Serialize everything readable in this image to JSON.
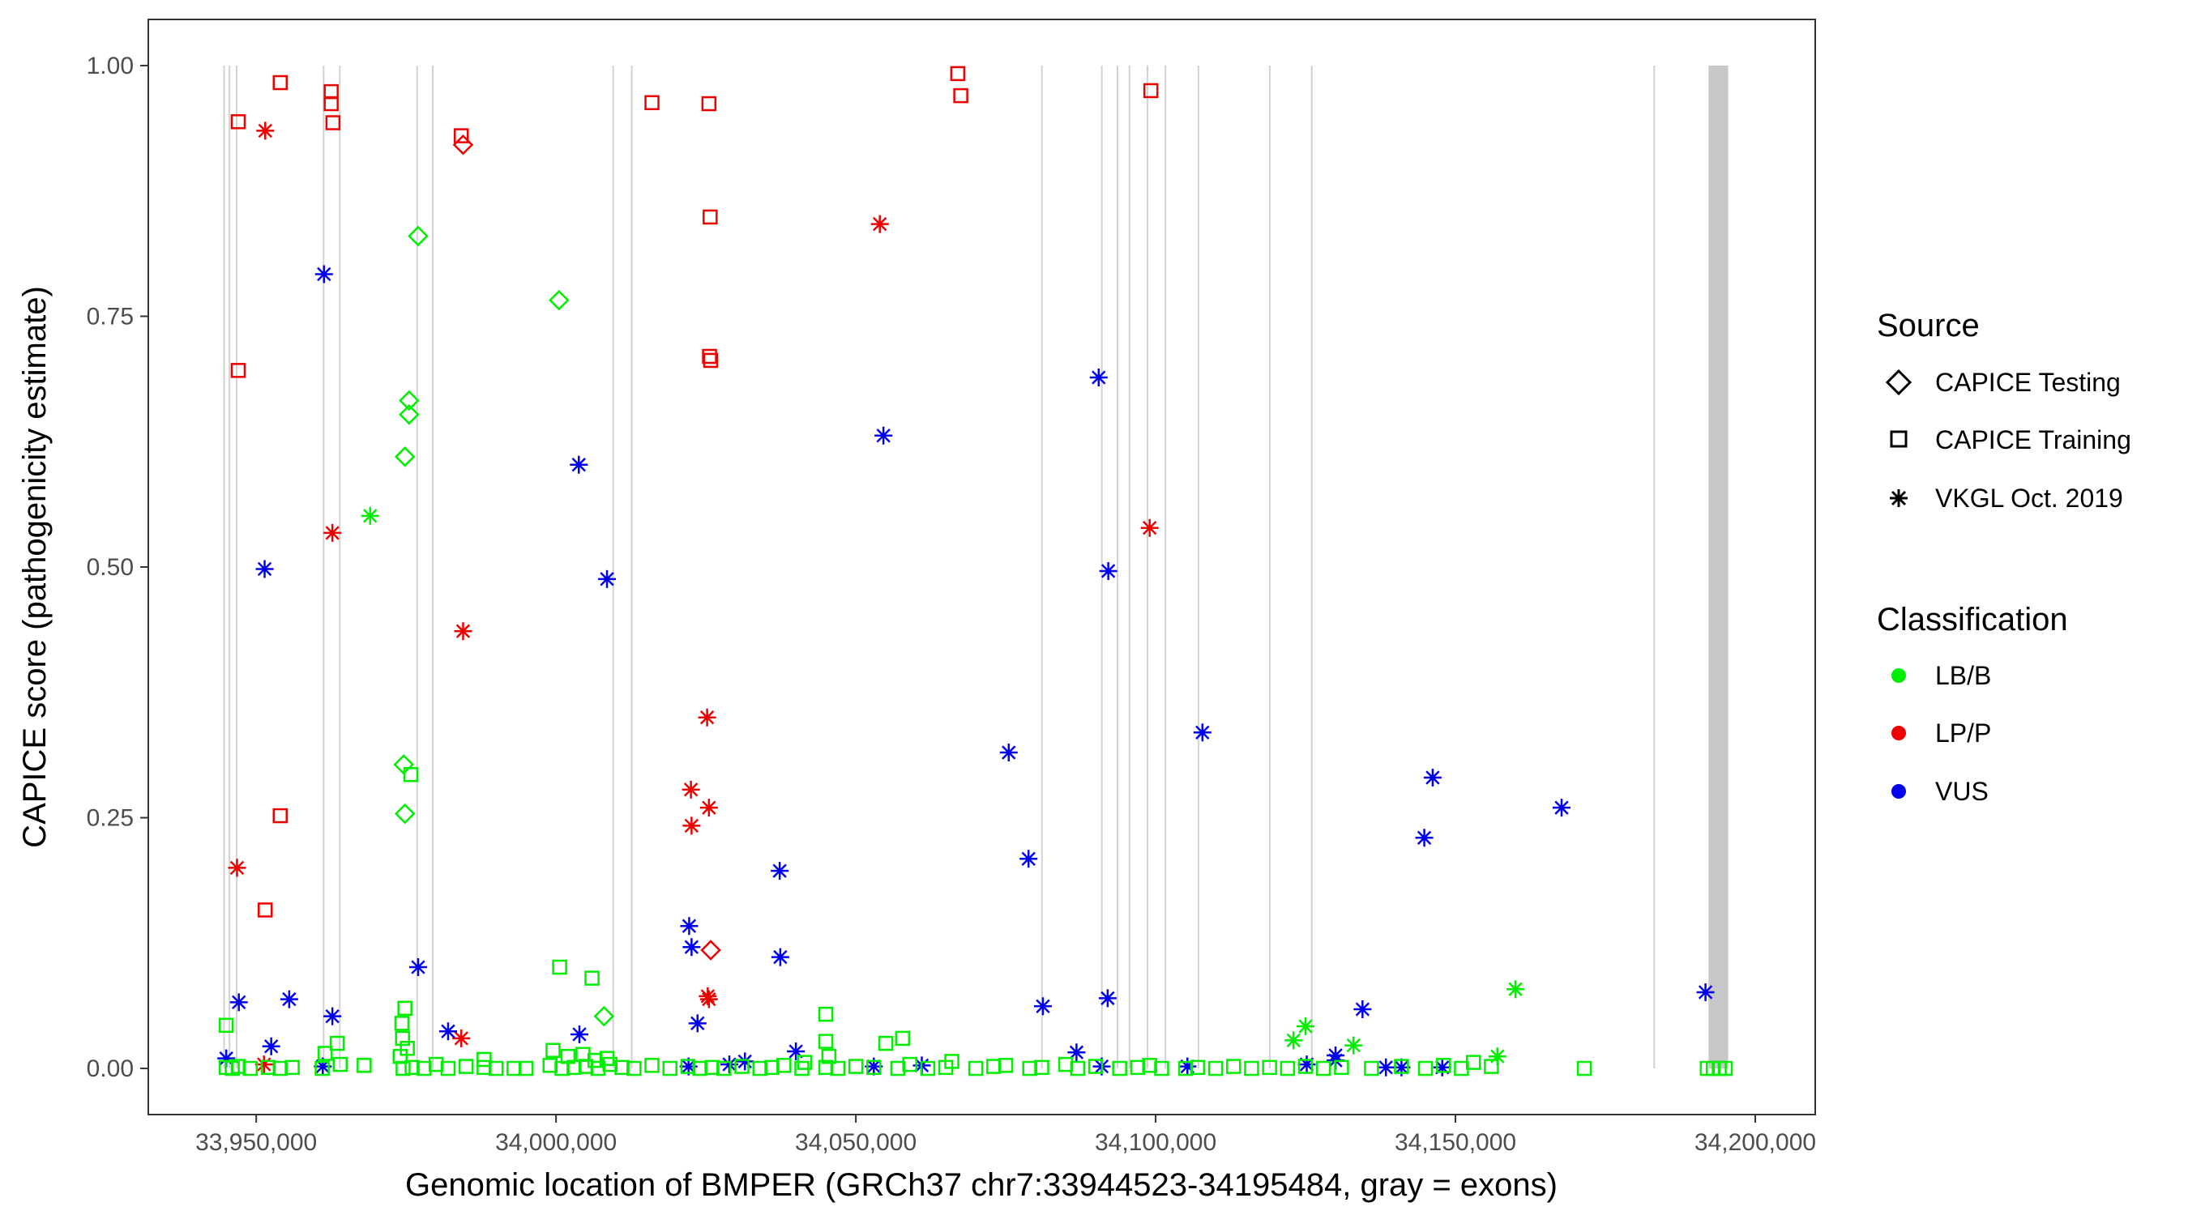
{
  "chart_data": {
    "type": "scatter",
    "title": "",
    "xlabel": "Genomic location of BMPER (GRCh37 chr7:33944523-34195484, gray = exons)",
    "ylabel": "CAPICE score (pathogenicity estimate)",
    "xlim": [
      33932000,
      34210000
    ],
    "ylim": [
      -0.046,
      1.046
    ],
    "x_ticks": [
      33950000,
      34000000,
      34050000,
      34100000,
      34150000,
      34200000
    ],
    "x_tick_labels": [
      "33,950,000",
      "34,000,000",
      "34,050,000",
      "34,100,000",
      "34,150,000",
      "34,200,000"
    ],
    "y_ticks": [
      0.0,
      0.25,
      0.5,
      0.75,
      1.0
    ],
    "y_tick_labels": [
      "0.00",
      "0.25",
      "0.50",
      "0.75",
      "1.00"
    ],
    "grid": false,
    "exons": [
      {
        "start": 33944500,
        "end": 33944700
      },
      {
        "start": 33945400,
        "end": 33945600
      },
      {
        "start": 33946600,
        "end": 33946800
      },
      {
        "start": 33961100,
        "end": 33961300
      },
      {
        "start": 33963800,
        "end": 33964000
      },
      {
        "start": 33976700,
        "end": 33976900
      },
      {
        "start": 33979300,
        "end": 33979500
      },
      {
        "start": 34009400,
        "end": 34009600
      },
      {
        "start": 34012500,
        "end": 34012700
      },
      {
        "start": 34080900,
        "end": 34081100
      },
      {
        "start": 34090900,
        "end": 34091100
      },
      {
        "start": 34093500,
        "end": 34093700
      },
      {
        "start": 34095500,
        "end": 34095700
      },
      {
        "start": 34098500,
        "end": 34098700
      },
      {
        "start": 34101500,
        "end": 34101700
      },
      {
        "start": 34107000,
        "end": 34107200
      },
      {
        "start": 34118900,
        "end": 34119100
      },
      {
        "start": 34125900,
        "end": 34126100
      },
      {
        "start": 34183000,
        "end": 34183200
      },
      {
        "start": 34192200,
        "end": 34195484
      }
    ],
    "legend": {
      "source_title": "Source",
      "source_items": [
        {
          "label": "CAPICE Testing",
          "shape": "diamond"
        },
        {
          "label": "CAPICE Training",
          "shape": "square"
        },
        {
          "label": "VKGL Oct. 2019",
          "shape": "asterisk"
        }
      ],
      "class_title": "Classification",
      "class_items": [
        {
          "label": "LB/B",
          "color": "#00ee00"
        },
        {
          "label": "LP/P",
          "color": "#ee0000"
        },
        {
          "label": "VUS",
          "color": "#0000ee"
        }
      ]
    },
    "series": [
      {
        "name": "CAPICE Training LP/P",
        "shape": "square",
        "color": "#ee0000",
        "x": [
          33947000,
          33954000,
          33962500,
          33962500,
          33962800,
          33984200,
          34016000,
          34025500,
          34025700,
          34025600,
          34025800,
          34067000,
          34067500,
          34099200,
          33947000,
          33954000,
          33951500
        ],
        "y": [
          0.944,
          0.983,
          0.974,
          0.962,
          0.943,
          0.93,
          0.963,
          0.962,
          0.849,
          0.71,
          0.706,
          0.992,
          0.97,
          0.975,
          0.696,
          0.252,
          0.158
        ]
      },
      {
        "name": "CAPICE Testing LP/P",
        "shape": "diamond",
        "color": "#ee0000",
        "x": [
          33984500,
          34025800
        ],
        "y": [
          0.921,
          0.118
        ]
      },
      {
        "name": "VKGL LP/P",
        "shape": "asterisk",
        "color": "#ee0000",
        "x": [
          33951500,
          34054000,
          33962700,
          33984500,
          34099000,
          34025200,
          34022500,
          34025500,
          34022600,
          34025300,
          34025500,
          33946800,
          33984200,
          33951300
        ],
        "y": [
          0.935,
          0.842,
          0.534,
          0.436,
          0.539,
          0.35,
          0.278,
          0.26,
          0.242,
          0.072,
          0.069,
          0.2,
          0.03,
          0.004
        ]
      },
      {
        "name": "VKGL VUS",
        "shape": "asterisk",
        "color": "#0000ee",
        "x": [
          33961300,
          34003800,
          34008500,
          34054600,
          34090500,
          34092100,
          33951400,
          34107800,
          34075500,
          34078800,
          34037300,
          34146200,
          34167700,
          34144800,
          34022200,
          34022600,
          34037400,
          34023600,
          33977000,
          34191700,
          33947100,
          33955500,
          33962700,
          34081200,
          34092000,
          34134500,
          34003900,
          33982000,
          33952500,
          34040000,
          34086800,
          34130000,
          34130000,
          33945000,
          34031500,
          34028900,
          34022100,
          34061000,
          33961100,
          34053000,
          34091000,
          34105300,
          34125200,
          34138400,
          34141000,
          34147800
        ],
        "y": [
          0.792,
          0.602,
          0.488,
          0.631,
          0.689,
          0.496,
          0.498,
          0.335,
          0.315,
          0.209,
          0.197,
          0.29,
          0.26,
          0.23,
          0.142,
          0.121,
          0.111,
          0.045,
          0.101,
          0.076,
          0.066,
          0.069,
          0.052,
          0.062,
          0.07,
          0.059,
          0.034,
          0.037,
          0.022,
          0.017,
          0.016,
          0.013,
          0.008,
          0.01,
          0.007,
          0.004,
          0.002,
          0.003,
          0.002,
          0.002,
          0.002,
          0.002,
          0.004,
          0.001,
          0.001,
          0.001
        ]
      },
      {
        "name": "VKGL LB/B",
        "shape": "asterisk",
        "color": "#00ee00",
        "x": [
          33969000,
          34160000,
          34125000,
          34133000,
          34123000,
          34157000
        ],
        "y": [
          0.551,
          0.079,
          0.042,
          0.023,
          0.028,
          0.012
        ]
      },
      {
        "name": "CAPICE Testing LB/B",
        "shape": "diamond",
        "color": "#00ee00",
        "x": [
          33977000,
          34000500,
          33975500,
          33975500,
          33974800,
          33974600,
          33974800,
          34008000
        ],
        "y": [
          0.83,
          0.766,
          0.666,
          0.652,
          0.61,
          0.303,
          0.254,
          0.052
        ]
      },
      {
        "name": "CAPICE Training LB/B",
        "shape": "square",
        "color": "#00ee00",
        "x": [
          33975800,
          34000600,
          34006000,
          33945000,
          34045000,
          34057800,
          33974800,
          34055000,
          33963500,
          34045000,
          33961500,
          33975200,
          33974400,
          33974300,
          33945000,
          33946000,
          33947000,
          33949000,
          33952000,
          33954000,
          33956000,
          33961000,
          33964000,
          33968000,
          33974500,
          33976000,
          33978000,
          33980000,
          33982000,
          33985000,
          33988000,
          33990000,
          33993000,
          33995000,
          33999000,
          34001000,
          34003000,
          34005000,
          34007000,
          34009000,
          34011000,
          34013000,
          34016000,
          34019000,
          34022000,
          34024000,
          34026000,
          34028000,
          34031000,
          34034000,
          34036000,
          34038000,
          34041000,
          34045000,
          34047000,
          34050000,
          34053000,
          34057000,
          34059000,
          34062000,
          34065000,
          34070000,
          34073000,
          34075000,
          34079000,
          34081000,
          34085000,
          34087000,
          34090000,
          34094000,
          34097000,
          34099000,
          34101000,
          34105000,
          34107000,
          34110000,
          34113000,
          34116000,
          34119000,
          34122000,
          34125000,
          34128000,
          34131000,
          34136000,
          34141000,
          34145000,
          34148000,
          34151000,
          34153000,
          34156000,
          34171500,
          34192000,
          34193000,
          34194000,
          34195000,
          33999500,
          34002000,
          34004500,
          34006500,
          34008500,
          33988000,
          34066000,
          34045500,
          34041500,
          33974000
        ],
        "y": [
          0.293,
          0.101,
          0.09,
          0.043,
          0.054,
          0.03,
          0.06,
          0.025,
          0.025,
          0.027,
          0.015,
          0.02,
          0.03,
          0.045,
          0.001,
          0.0,
          0.002,
          0.0,
          0.001,
          0.0,
          0.001,
          0.0,
          0.004,
          0.003,
          0.0,
          0.001,
          0.0,
          0.004,
          0.0,
          0.002,
          0.001,
          0.0,
          0.0,
          0.0,
          0.003,
          0.0,
          0.001,
          0.002,
          0.0,
          0.004,
          0.001,
          0.0,
          0.003,
          0.0,
          0.002,
          0.0,
          0.001,
          0.0,
          0.002,
          0.0,
          0.001,
          0.003,
          0.0,
          0.001,
          0.0,
          0.002,
          0.001,
          0.0,
          0.004,
          0.0,
          0.001,
          0.0,
          0.002,
          0.003,
          0.0,
          0.001,
          0.004,
          0.0,
          0.002,
          0.0,
          0.001,
          0.003,
          0.0,
          0.0,
          0.001,
          0.0,
          0.002,
          0.0,
          0.001,
          0.0,
          0.002,
          0.0,
          0.001,
          0.0,
          0.002,
          0.0,
          0.003,
          0.0,
          0.006,
          0.002,
          0.0,
          0.0,
          0.0,
          0.0,
          0.0,
          0.018,
          0.012,
          0.014,
          0.008,
          0.01,
          0.009,
          0.007,
          0.012,
          0.006,
          0.012
        ]
      }
    ]
  }
}
